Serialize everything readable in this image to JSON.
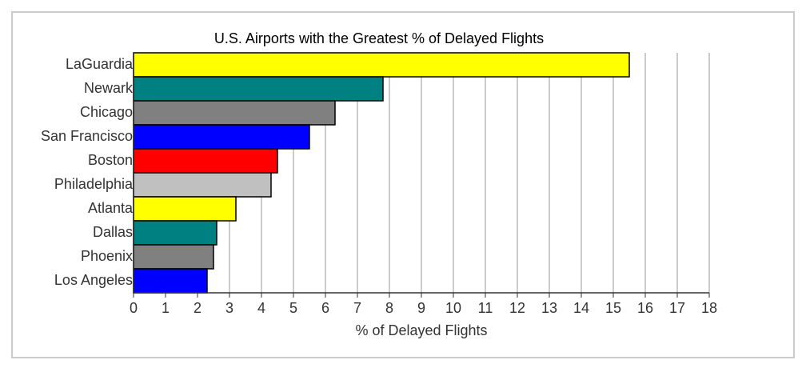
{
  "chart_data": {
    "type": "hbar",
    "title": "U.S. Airports with the Greatest % of Delayed Flights",
    "x_label": "% of Delayed Flights",
    "categories": [
      "LaGuardia",
      "Newark",
      "Chicago",
      "San Francisco",
      "Boston",
      "Philadelphia",
      "Atlanta",
      "Dallas",
      "Phoenix",
      "Los Angeles"
    ],
    "values": [
      15.5,
      7.8,
      6.3,
      5.5,
      4.5,
      4.3,
      3.2,
      2.6,
      2.5,
      2.3
    ],
    "colors": [
      "#ffff00",
      "#008080",
      "#808080",
      "#0000ff",
      "#ff0000",
      "#c0c0c0",
      "#ffff00",
      "#008080",
      "#808080",
      "#0000ff"
    ],
    "xlim": [
      0,
      18
    ],
    "xticks": [
      0,
      1,
      2,
      3,
      4,
      5,
      6,
      7,
      8,
      9,
      10,
      11,
      12,
      13,
      14,
      15,
      16,
      17,
      18
    ],
    "grid": true
  }
}
